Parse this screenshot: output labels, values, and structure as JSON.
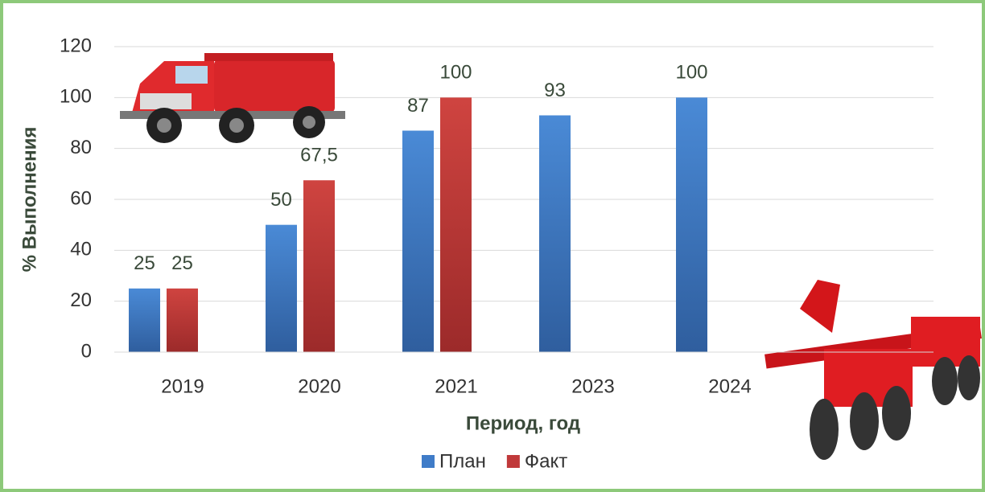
{
  "chart_data": {
    "type": "bar",
    "y_label": "% Выполнения",
    "x_label": "Период, год",
    "categories": [
      "2019",
      "2020",
      "2021",
      "2023",
      "2024"
    ],
    "series": [
      {
        "name": "План",
        "color": "#3f7cc8",
        "values": [
          25,
          50,
          87,
          93,
          100
        ]
      },
      {
        "name": "Факт",
        "color": "#c0393a",
        "values": [
          25,
          67.5,
          100,
          null,
          null
        ],
        "value_labels": [
          "25",
          "67,5",
          "100",
          null,
          null
        ]
      }
    ],
    "ylim": [
      0,
      120
    ],
    "yticks": [
      0,
      20,
      40,
      60,
      80,
      100,
      120
    ],
    "grid": true,
    "legend": "bottom"
  }
}
